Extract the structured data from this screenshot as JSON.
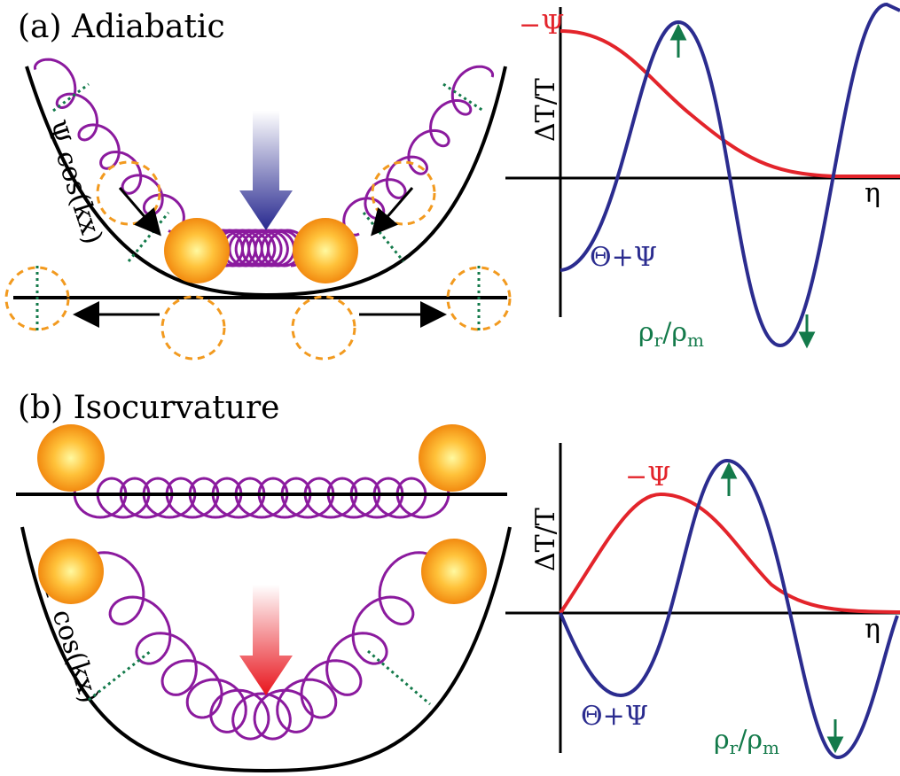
{
  "panel_a": {
    "title": "(a) Adiabatic",
    "potential_label": "Ψ cos(kx)",
    "plot": {
      "y_label": "ΔT/T",
      "x_label": "η",
      "potential_curve": "−Ψ",
      "temperature_curve": "Θ+Ψ",
      "ratio_label": {
        "top": "ρ",
        "top_sub": "r",
        "slash": "/",
        "bottom": "ρ",
        "bottom_sub": "m"
      }
    }
  },
  "panel_b": {
    "title": "(b) Isocurvature",
    "potential_label": "Ψ cos(kx)",
    "plot": {
      "y_label": "ΔT/T",
      "x_label": "η",
      "potential_curve": "−Ψ",
      "temperature_curve": "Θ+Ψ",
      "ratio_label": {
        "top": "ρ",
        "top_sub": "r",
        "slash": "/",
        "bottom": "ρ",
        "bottom_sub": "m"
      }
    }
  }
}
